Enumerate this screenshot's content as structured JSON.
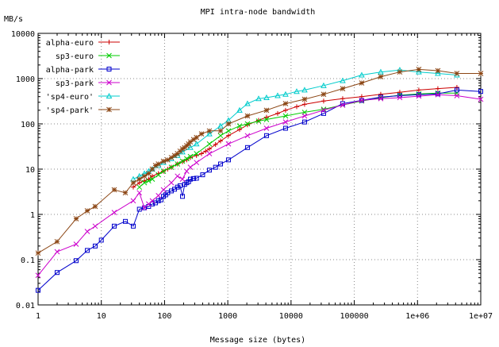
{
  "chart_data": {
    "type": "line",
    "title": "MPI intra-node bandwidth",
    "xlabel": "Message size (bytes)",
    "ylabel": "MB/s",
    "x_scale": "log",
    "y_scale": "log",
    "xlim": [
      1,
      10000000
    ],
    "ylim": [
      0.01,
      10000
    ],
    "x_ticks": [
      {
        "value": 1,
        "label": "1"
      },
      {
        "value": 10,
        "label": "10"
      },
      {
        "value": 100,
        "label": "100"
      },
      {
        "value": 1000,
        "label": "1000"
      },
      {
        "value": 10000,
        "label": "10000"
      },
      {
        "value": 100000,
        "label": "100000"
      },
      {
        "value": 1000000,
        "label": "1e+06"
      },
      {
        "value": 10000000,
        "label": "1e+07"
      }
    ],
    "y_ticks": [
      {
        "value": 0.01,
        "label": "0.01"
      },
      {
        "value": 0.1,
        "label": "0.1"
      },
      {
        "value": 1,
        "label": "1"
      },
      {
        "value": 10,
        "label": "10"
      },
      {
        "value": 100,
        "label": "100"
      },
      {
        "value": 1000,
        "label": "1000"
      },
      {
        "value": 10000,
        "label": "10000"
      }
    ],
    "grid": true,
    "legend_position": "top-left",
    "series": [
      {
        "name": "alpha-euro",
        "color": "#cc0000",
        "marker": "plus",
        "x": [
          32,
          40,
          48,
          56,
          64,
          80,
          96,
          112,
          128,
          160,
          192,
          224,
          256,
          320,
          384,
          448,
          512,
          640,
          768,
          1024,
          1536,
          2048,
          3072,
          4096,
          6144,
          8192,
          12288,
          16384,
          32768,
          65536,
          131072,
          262144,
          524288,
          1048576,
          2097152,
          4194304
        ],
        "y": [
          4,
          5,
          5.5,
          6,
          7,
          8,
          9,
          10,
          11,
          13,
          14.5,
          16,
          18,
          20,
          22,
          25,
          28,
          35,
          42,
          55,
          75,
          95,
          120,
          140,
          170,
          200,
          240,
          270,
          320,
          360,
          400,
          450,
          500,
          560,
          600,
          640
        ]
      },
      {
        "name": "sp3-euro",
        "color": "#00cc00",
        "marker": "cross",
        "x": [
          40,
          48,
          56,
          64,
          80,
          96,
          128,
          160,
          192,
          224,
          256,
          320,
          512,
          768,
          1024,
          1536,
          2048,
          3072,
          4096,
          8192,
          16384,
          32768,
          65536,
          131072,
          262144,
          524288,
          1048576,
          2097152,
          4194304
        ],
        "y": [
          4,
          5,
          5.5,
          6,
          7.5,
          9,
          11,
          13,
          15,
          17,
          19,
          22,
          36,
          55,
          70,
          90,
          100,
          115,
          125,
          150,
          180,
          210,
          260,
          320,
          380,
          430,
          460,
          480,
          480
        ]
      },
      {
        "name": "alpha-park",
        "color": "#0000cc",
        "marker": "square",
        "x": [
          1,
          2,
          4,
          6,
          8,
          10,
          16,
          24,
          32,
          40,
          48,
          56,
          64,
          72,
          80,
          88,
          96,
          104,
          112,
          128,
          144,
          160,
          176,
          192,
          208,
          224,
          240,
          256,
          288,
          320,
          400,
          512,
          640,
          768,
          1024,
          2048,
          4096,
          8192,
          16384,
          32768,
          65536,
          131072,
          262144,
          524288,
          1048576,
          2097152,
          4194304,
          10000000
        ],
        "y": [
          0.021,
          0.052,
          0.095,
          0.16,
          0.2,
          0.27,
          0.55,
          0.7,
          0.55,
          1.3,
          1.4,
          1.5,
          1.7,
          1.8,
          2,
          2.1,
          2.5,
          2.7,
          3,
          3.3,
          3.6,
          4,
          4.3,
          2.5,
          4.6,
          5,
          5.3,
          6,
          6.2,
          6.3,
          7.5,
          9.5,
          11,
          13,
          16,
          30,
          55,
          80,
          110,
          170,
          280,
          330,
          390,
          420,
          440,
          460,
          560,
          520
        ]
      },
      {
        "name": "sp3-park",
        "color": "#cc00cc",
        "marker": "x",
        "x": [
          1,
          2,
          4,
          6,
          8,
          16,
          32,
          40,
          48,
          56,
          64,
          80,
          96,
          128,
          160,
          192,
          224,
          256,
          320,
          512,
          1024,
          2048,
          4096,
          8192,
          16384,
          32768,
          65536,
          131072,
          262144,
          524288,
          1048576,
          2097152,
          4194304,
          10000000
        ],
        "y": [
          0.045,
          0.15,
          0.22,
          0.42,
          0.55,
          1.1,
          2,
          3,
          1.4,
          1.7,
          2,
          2.6,
          3.5,
          5,
          7,
          6,
          9,
          11,
          14,
          22,
          36,
          55,
          80,
          110,
          150,
          200,
          260,
          330,
          360,
          380,
          410,
          440,
          420,
          350
        ]
      },
      {
        "name": "'sp4-euro'",
        "color": "#00cccc",
        "marker": "triangle",
        "x": [
          32,
          40,
          48,
          56,
          64,
          80,
          96,
          128,
          160,
          192,
          256,
          320,
          512,
          768,
          1024,
          1536,
          2048,
          3072,
          4096,
          6144,
          8192,
          12288,
          16384,
          32768,
          65536,
          131072,
          262144,
          524288,
          1048576,
          2097152,
          4194304
        ],
        "y": [
          6,
          7,
          8,
          9,
          10,
          12,
          14,
          17,
          20,
          24,
          30,
          36,
          60,
          90,
          120,
          200,
          280,
          360,
          380,
          420,
          450,
          520,
          560,
          700,
          900,
          1200,
          1400,
          1550,
          1400,
          1300,
          1200
        ]
      },
      {
        "name": "'sp4-park'",
        "color": "#8b4513",
        "marker": "star",
        "x": [
          1,
          2,
          4,
          6,
          8,
          16,
          24,
          32,
          40,
          48,
          56,
          64,
          72,
          80,
          96,
          112,
          128,
          144,
          160,
          176,
          192,
          208,
          224,
          240,
          256,
          288,
          320,
          384,
          512,
          768,
          1024,
          2048,
          4096,
          8192,
          16384,
          32768,
          65536,
          131072,
          262144,
          524288,
          1048576,
          2097152,
          4194304,
          10000000
        ],
        "y": [
          0.14,
          0.25,
          0.8,
          1.2,
          1.5,
          3.5,
          3,
          5,
          6,
          7,
          8,
          10,
          12,
          13,
          15,
          16,
          18,
          20,
          22,
          25,
          28,
          30,
          33,
          36,
          40,
          45,
          50,
          60,
          70,
          70,
          100,
          150,
          200,
          280,
          350,
          450,
          600,
          800,
          1100,
          1400,
          1600,
          1500,
          1300,
          1300
        ]
      }
    ]
  }
}
